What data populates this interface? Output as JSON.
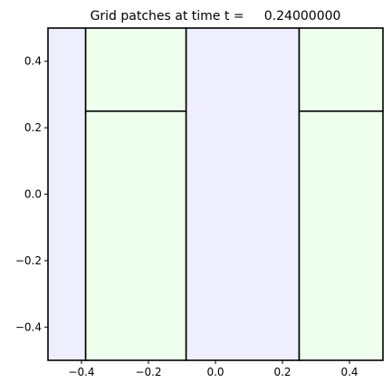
{
  "chart_data": {
    "type": "grid-patches",
    "title": "Grid patches at time t =     0.24000000",
    "xlabel": "",
    "ylabel": "",
    "xlim": [
      -0.5,
      0.5
    ],
    "ylim": [
      -0.5,
      0.5
    ],
    "grid": false,
    "x_ticks": [
      -0.4,
      -0.2,
      0.0,
      0.2,
      0.4
    ],
    "x_tick_labels": [
      "−0.4",
      "−0.2",
      "0.0",
      "0.2",
      "0.4"
    ],
    "y_ticks": [
      0.4,
      0.2,
      0.0,
      -0.2,
      -0.4
    ],
    "y_tick_labels": [
      "0.4",
      "0.2",
      "0.0",
      "−0.2",
      "−0.4"
    ],
    "level_colors": {
      "level1": "#eeeeff",
      "level2": "#eeffee"
    },
    "patches": [
      {
        "level": 1,
        "x0": -0.5,
        "x1": -0.3875,
        "y0": -0.5,
        "y1": 0.5
      },
      {
        "level": 2,
        "x0": -0.3875,
        "x1": -0.0875,
        "y0": -0.5,
        "y1": 0.25
      },
      {
        "level": 2,
        "x0": -0.3875,
        "x1": -0.0875,
        "y0": 0.25,
        "y1": 0.5
      },
      {
        "level": 1,
        "x0": -0.0875,
        "x1": 0.25,
        "y0": -0.5,
        "y1": 0.5
      },
      {
        "level": 2,
        "x0": 0.25,
        "x1": 0.5,
        "y0": -0.5,
        "y1": 0.25
      },
      {
        "level": 2,
        "x0": 0.25,
        "x1": 0.5,
        "y0": 0.25,
        "y1": 0.5
      }
    ],
    "patch_edge_color": "#000000"
  }
}
